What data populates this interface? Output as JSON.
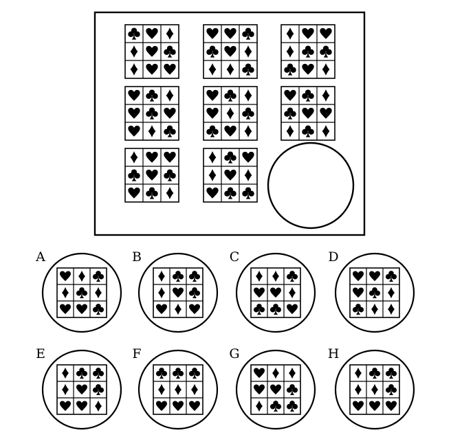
{
  "puzzle": {
    "matrix": [
      [
        [
          "club",
          "heart",
          "diamond",
          "diamond",
          "heart",
          "club",
          "diamond",
          "heart",
          "heart"
        ],
        [
          "heart",
          "heart",
          "club",
          "club",
          "heart",
          "diamond",
          "diamond",
          "diamond",
          "club"
        ],
        [
          "diamond",
          "heart",
          "heart",
          "diamond",
          "club",
          "club",
          "club",
          "heart",
          "diamond"
        ]
      ],
      [
        [
          "heart",
          "club",
          "diamond",
          "heart",
          "club",
          "heart",
          "heart",
          "diamond",
          "club"
        ],
        [
          "heart",
          "club",
          "diamond",
          "heart",
          "diamond",
          "club",
          "club",
          "heart",
          "diamond"
        ],
        [
          "heart",
          "club",
          "diamond",
          "club",
          "heart",
          "heart",
          "diamond",
          "club",
          "diamond"
        ]
      ],
      [
        [
          "diamond",
          "heart",
          "heart",
          "club",
          "heart",
          "club",
          "heart",
          "club",
          "diamond"
        ],
        [
          "diamond",
          "club",
          "heart",
          "diamond",
          "heart",
          "diamond",
          "heart",
          "club",
          "club"
        ],
        null
      ]
    ],
    "answer_box": "blank-circle"
  },
  "options": [
    {
      "label": "A",
      "cells": [
        "heart",
        "diamond",
        "club",
        "diamond",
        "club",
        "diamond",
        "heart",
        "heart",
        "club"
      ]
    },
    {
      "label": "B",
      "cells": [
        "diamond",
        "club",
        "club",
        "diamond",
        "heart",
        "club",
        "heart",
        "diamond",
        "heart"
      ]
    },
    {
      "label": "C",
      "cells": [
        "diamond",
        "diamond",
        "club",
        "heart",
        "heart",
        "diamond",
        "club",
        "club",
        "heart"
      ]
    },
    {
      "label": "D",
      "cells": [
        "heart",
        "heart",
        "club",
        "heart",
        "club",
        "diamond",
        "club",
        "diamond",
        "diamond"
      ]
    },
    {
      "label": "E",
      "cells": [
        "diamond",
        "club",
        "club",
        "diamond",
        "heart",
        "club",
        "heart",
        "heart",
        "diamond"
      ]
    },
    {
      "label": "F",
      "cells": [
        "club",
        "club",
        "club",
        "diamond",
        "diamond",
        "diamond",
        "heart",
        "heart",
        "heart"
      ]
    },
    {
      "label": "G",
      "cells": [
        "heart",
        "diamond",
        "diamond",
        "heart",
        "heart",
        "club",
        "diamond",
        "club",
        "club"
      ]
    },
    {
      "label": "H",
      "cells": [
        "diamond",
        "club",
        "club",
        "diamond",
        "diamond",
        "club",
        "heart",
        "heart",
        "heart"
      ]
    }
  ]
}
